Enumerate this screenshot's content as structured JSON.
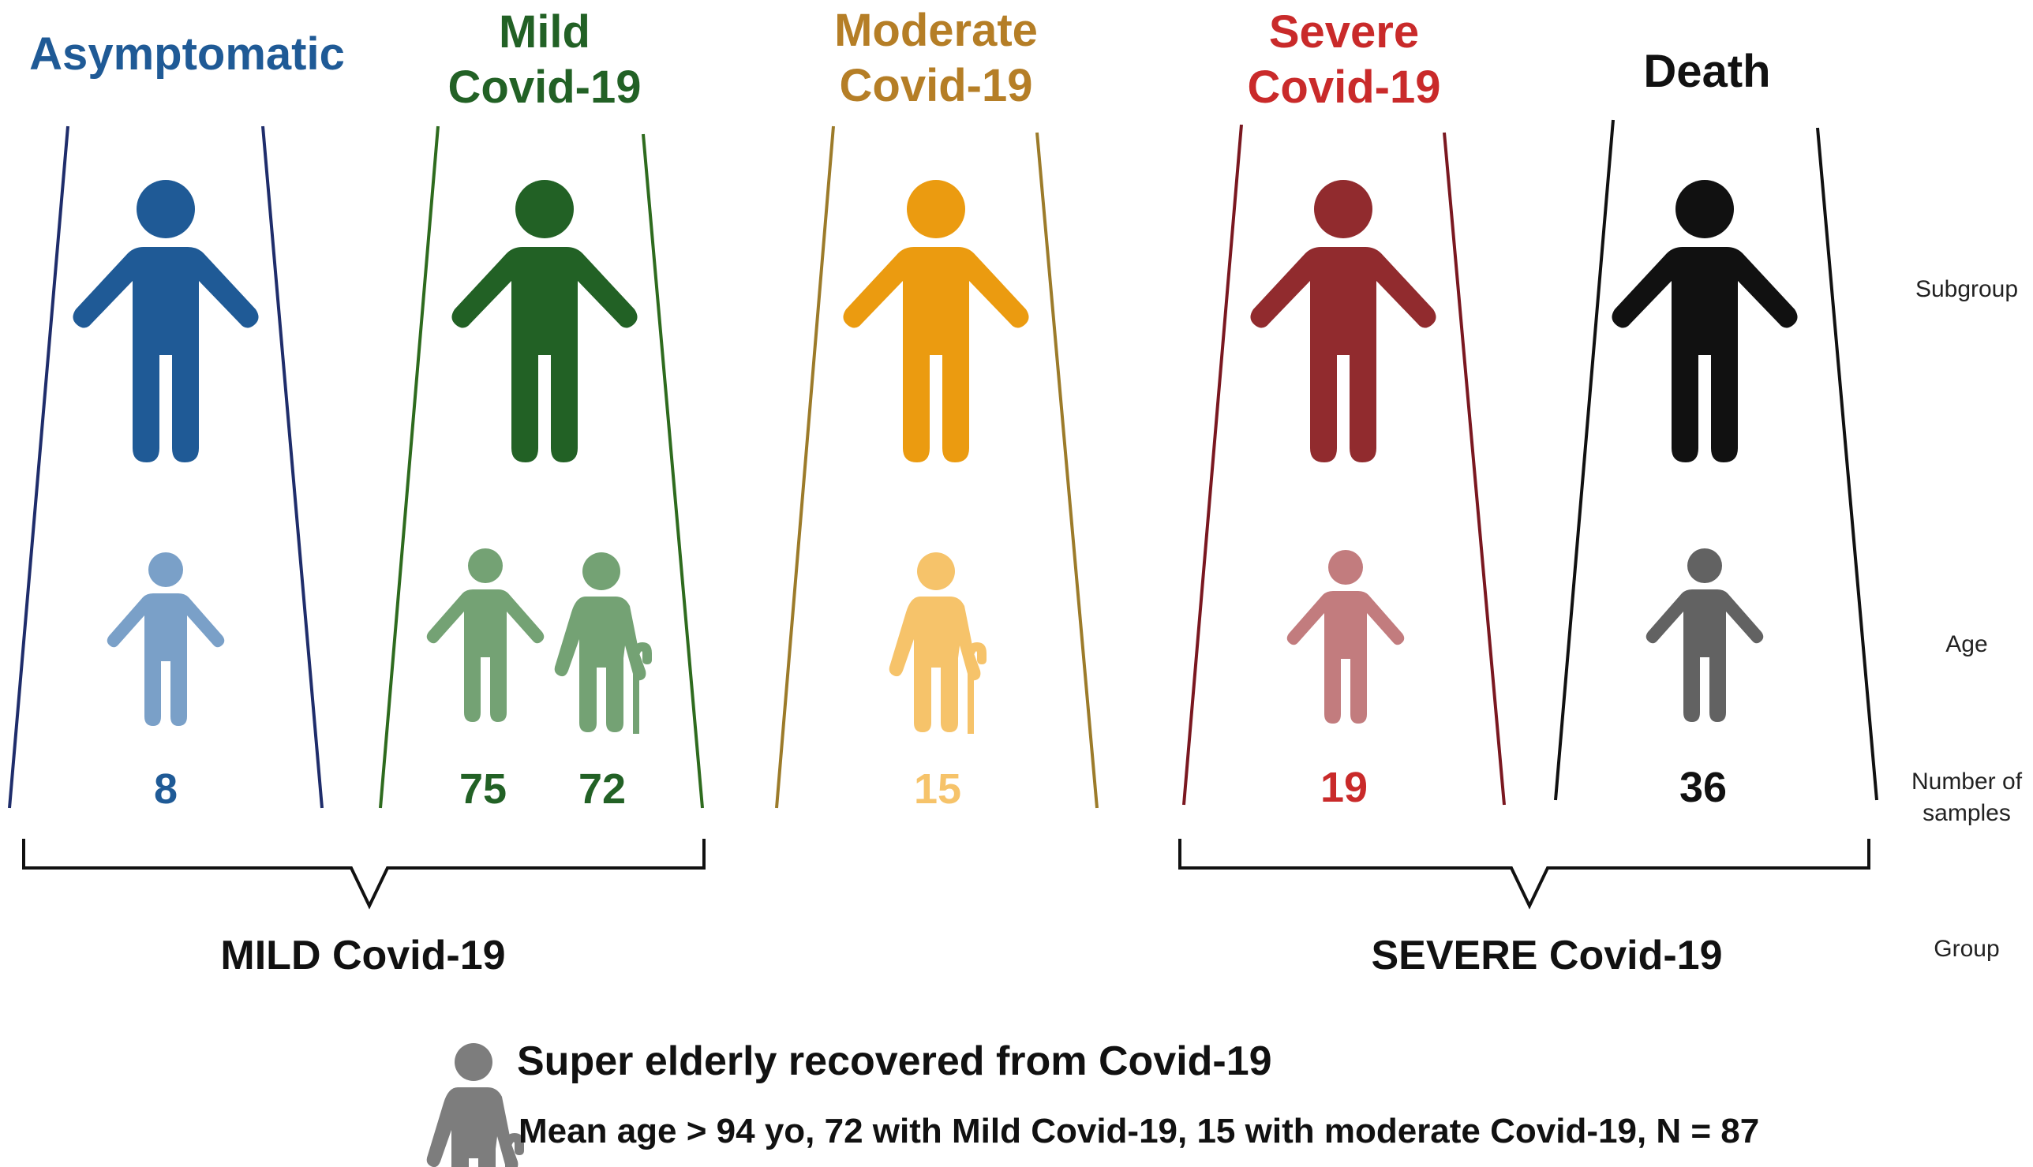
{
  "subgroups": [
    {
      "title": [
        "Asymptomatic"
      ],
      "color": "#1f5a96",
      "light_color": "#7aa0c8",
      "counts": [
        "8"
      ]
    },
    {
      "title": [
        "Mild",
        "Covid-19"
      ],
      "color": "#226125",
      "light_color": "#74a274",
      "counts": [
        "75",
        "72"
      ]
    },
    {
      "title": [
        "Moderate",
        "Covid-19"
      ],
      "color": "#b57e26",
      "figure_color": "#eb9b10",
      "light_color": "#f6c36a",
      "counts": [
        "15"
      ]
    },
    {
      "title": [
        "Severe",
        "Covid-19"
      ],
      "color": "#c92a2a",
      "figure_color": "#912b2e",
      "light_color": "#c27c7e",
      "counts": [
        "19"
      ]
    },
    {
      "title": [
        "Death"
      ],
      "color": "#111111",
      "light_color": "#626262",
      "counts": [
        "36"
      ]
    }
  ],
  "row_labels": {
    "subgroup": "Subgroup",
    "age": "Age",
    "samples_line1": "Number of",
    "samples_line2": "samples",
    "group": "Group"
  },
  "groups": {
    "mild": "MILD Covid-19",
    "severe": "SEVERE Covid-19"
  },
  "footnote": {
    "title": "Super elderly recovered from Covid-19",
    "detail": "Mean age > 94 yo, 72 with Mild Covid-19, 15 with moderate Covid-19, N = 87",
    "icon": "elderly-person-icon"
  },
  "icons": {
    "adult": "person-icon",
    "child": "child-icon",
    "elderly": "elderly-person-icon"
  }
}
